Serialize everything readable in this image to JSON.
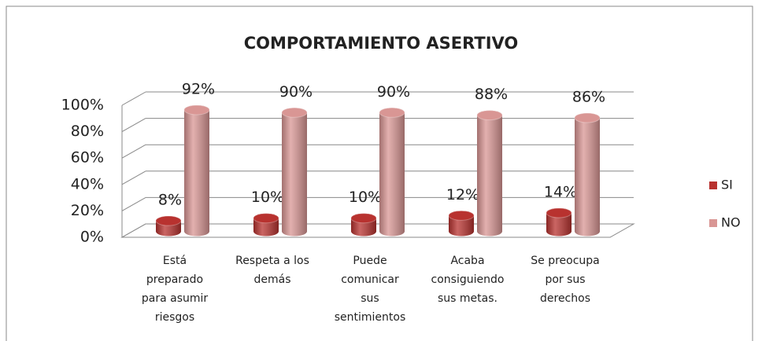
{
  "chart_data": {
    "type": "bar3d",
    "title": "COMPORTAMIENTO ASERTIVO",
    "categories": [
      [
        "Está",
        "preparado",
        "para asumir",
        "riesgos"
      ],
      [
        "Respeta a los",
        "demás"
      ],
      [
        "Puede",
        "comunicar",
        "sus",
        "sentimientos"
      ],
      [
        "Acaba",
        "consiguiendo",
        "sus metas."
      ],
      [
        "Se preocupa",
        "por sus",
        "derechos"
      ]
    ],
    "series": [
      {
        "name": "SI",
        "color": "#b8322f",
        "values": [
          8,
          10,
          10,
          12,
          14
        ],
        "value_labels": [
          "8%",
          "10%",
          "10%",
          "12%",
          "14%"
        ]
      },
      {
        "name": "NO",
        "color": "#d99694",
        "values": [
          92,
          90,
          90,
          88,
          86
        ],
        "value_labels": [
          "92%",
          "90%",
          "90%",
          "88%",
          "86%"
        ]
      }
    ],
    "ylim": [
      0,
      100
    ],
    "yticks": [
      {
        "value": 0,
        "label": "0%"
      },
      {
        "value": 20,
        "label": "20%"
      },
      {
        "value": 40,
        "label": "40%"
      },
      {
        "value": 60,
        "label": "60%"
      },
      {
        "value": 80,
        "label": "80%"
      },
      {
        "value": 100,
        "label": "100%"
      }
    ],
    "grid": true,
    "legend": "right"
  }
}
